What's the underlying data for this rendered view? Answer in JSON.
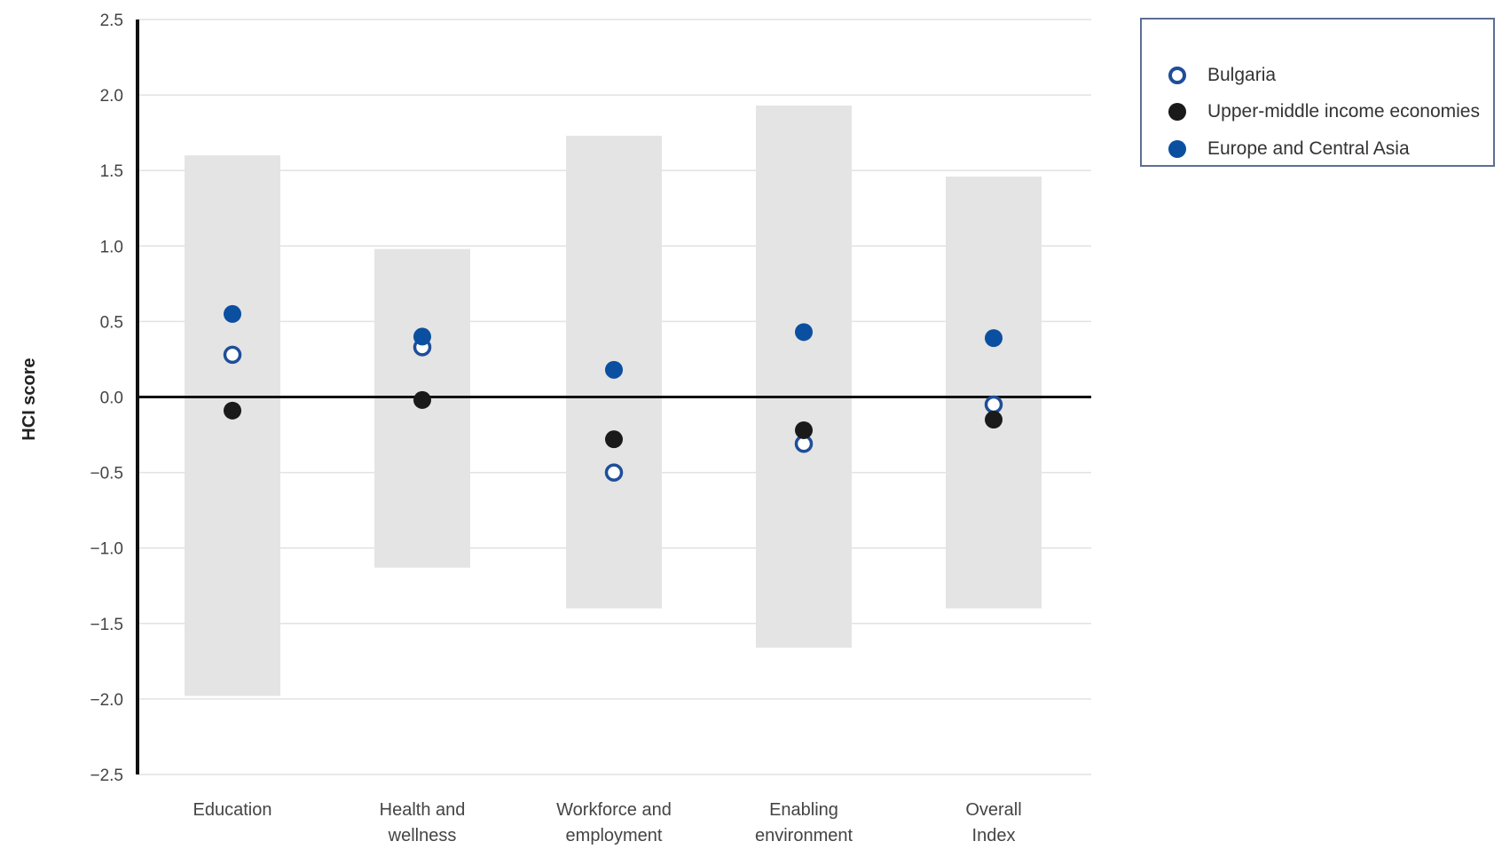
{
  "colors": {
    "bulgaria": "#1f4e99",
    "upper_middle": "#1a1a1a",
    "eca": "#0b4fa0",
    "range_bar": "#e4e4e4",
    "grid": "#e2e2e2",
    "axis": "#111111"
  },
  "legend": {
    "items": [
      {
        "label": "Bulgaria",
        "marker": "hollow",
        "series": "bulgaria"
      },
      {
        "label": "Upper-middle income economies",
        "marker": "filled-black",
        "series": "upper_middle"
      },
      {
        "label": "Europe and Central Asia",
        "marker": "filled-blue",
        "series": "eca"
      }
    ]
  },
  "chart_data": {
    "type": "scatter",
    "ylabel": "HCI score",
    "ylim": [
      -2.5,
      2.5
    ],
    "yticks": [
      "2.5",
      "2.0",
      "1.5",
      "1.0",
      "0.5",
      "0.0",
      "−0.5",
      "−1.0",
      "−1.5",
      "−2.0",
      "−2.5"
    ],
    "ytick_values": [
      2.5,
      2.0,
      1.5,
      1.0,
      0.5,
      0.0,
      -0.5,
      -1.0,
      -1.5,
      -2.0,
      -2.5
    ],
    "grid": true,
    "legend_position": "top-right",
    "categories": [
      [
        "Education"
      ],
      [
        "Health and",
        "wellness"
      ],
      [
        "Workforce and",
        "employment"
      ],
      [
        "Enabling",
        "environment"
      ],
      [
        "Overall",
        "Index"
      ]
    ],
    "ranges": [
      {
        "min": -1.98,
        "max": 1.6
      },
      {
        "min": -1.13,
        "max": 0.98
      },
      {
        "min": -1.4,
        "max": 1.73
      },
      {
        "min": -1.66,
        "max": 1.93
      },
      {
        "min": -1.4,
        "max": 1.46
      }
    ],
    "series": [
      {
        "name": "Bulgaria",
        "key": "bulgaria",
        "style": "hollow",
        "values": [
          0.28,
          0.33,
          -0.5,
          -0.31,
          -0.05
        ]
      },
      {
        "name": "Upper-middle income economies",
        "key": "upper_middle",
        "style": "filled",
        "values": [
          -0.09,
          -0.02,
          -0.28,
          -0.22,
          -0.15
        ]
      },
      {
        "name": "Europe and Central Asia",
        "key": "eca",
        "style": "filled",
        "values": [
          0.55,
          0.4,
          0.18,
          0.43,
          0.39
        ]
      }
    ]
  }
}
